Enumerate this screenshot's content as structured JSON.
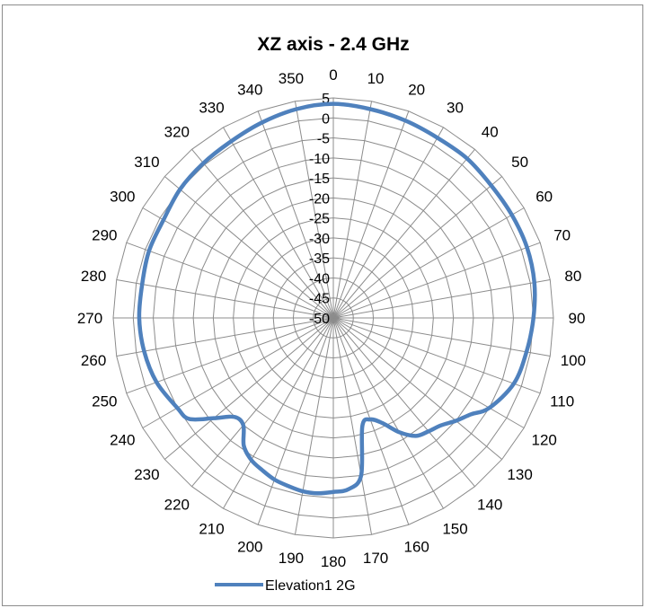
{
  "chart_data": {
    "type": "radar",
    "title": "XZ axis - 2.4 GHz",
    "angle_labels": [
      "0",
      "10",
      "20",
      "30",
      "40",
      "50",
      "60",
      "70",
      "80",
      "90",
      "100",
      "110",
      "120",
      "130",
      "140",
      "150",
      "160",
      "170",
      "180",
      "190",
      "200",
      "210",
      "220",
      "230",
      "240",
      "250",
      "260",
      "270",
      "280",
      "290",
      "300",
      "310",
      "320",
      "330",
      "340",
      "350"
    ],
    "radial_labels": [
      "5",
      "0",
      "-5",
      "-10",
      "-15",
      "-20",
      "-25",
      "-30",
      "-35",
      "-40",
      "-45",
      "-50"
    ],
    "rlim": [
      -50,
      5
    ],
    "grid": true,
    "legend_position": "bottom",
    "series": [
      {
        "name": "Elevation1 2G",
        "color": "#4f81bd",
        "angles": [
          0,
          10,
          20,
          30,
          40,
          50,
          60,
          70,
          80,
          90,
          100,
          110,
          120,
          125,
          130,
          135,
          140,
          145,
          150,
          155,
          160,
          165,
          170,
          175,
          180,
          185,
          190,
          195,
          200,
          205,
          210,
          215,
          220,
          225,
          230,
          235,
          240,
          250,
          260,
          270,
          280,
          290,
          300,
          310,
          320,
          330,
          340,
          350
        ],
        "values": [
          3.5,
          3,
          2.5,
          2,
          2,
          1.5,
          1.5,
          1.5,
          1,
          0,
          -1,
          -2,
          -5,
          -8,
          -10,
          -12,
          -13,
          -14,
          -17,
          -21,
          -23,
          -22,
          -10,
          -7,
          -6.5,
          -6,
          -6,
          -6.5,
          -7,
          -8,
          -9,
          -11,
          -15,
          -15,
          -11,
          -6,
          -5,
          -3,
          -2,
          -1.5,
          -1.5,
          -1,
          -1,
          0,
          0.5,
          1,
          2,
          3
        ]
      }
    ]
  }
}
